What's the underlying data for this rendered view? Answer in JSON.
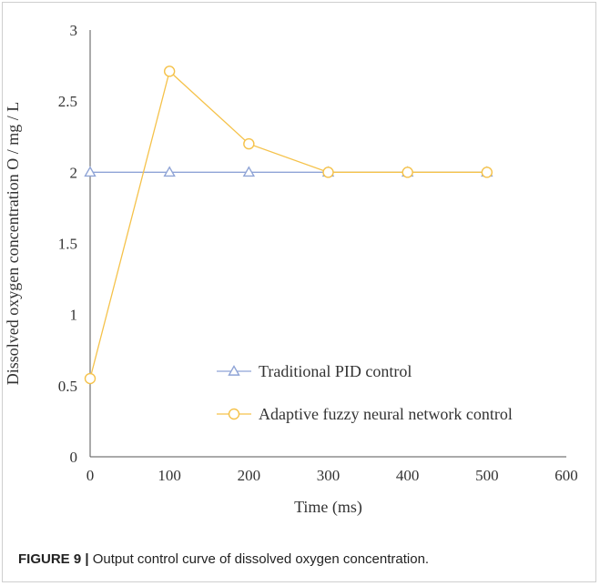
{
  "chart_data": {
    "type": "line",
    "xlabel": "Time (ms)",
    "ylabel": "Dissolved oxygen concentration O / mg / L",
    "xlim": [
      0,
      600
    ],
    "ylim": [
      0,
      3
    ],
    "xticks": [
      "0",
      "100",
      "200",
      "300",
      "400",
      "500",
      "600"
    ],
    "yticks": [
      "0",
      "0.5",
      "1",
      "1.5",
      "2",
      "2.5",
      "3"
    ],
    "grid": false,
    "legend_position": "lower-right",
    "series": [
      {
        "name": "Traditional PID control",
        "marker": "triangle",
        "color": "#8fa4d6",
        "x": [
          0,
          100,
          200,
          300,
          400,
          500
        ],
        "y": [
          2.0,
          2.0,
          2.0,
          2.0,
          2.0,
          2.0
        ]
      },
      {
        "name": "Adaptive fuzzy neural network control",
        "marker": "circle",
        "color": "#f5c24a",
        "x": [
          0,
          100,
          200,
          300,
          400,
          500
        ],
        "y": [
          0.55,
          2.71,
          2.2,
          2.0,
          2.0,
          2.0
        ]
      }
    ]
  },
  "caption": {
    "label": "FIGURE 9 |",
    "text": " Output control curve of dissolved oxygen concentration."
  }
}
